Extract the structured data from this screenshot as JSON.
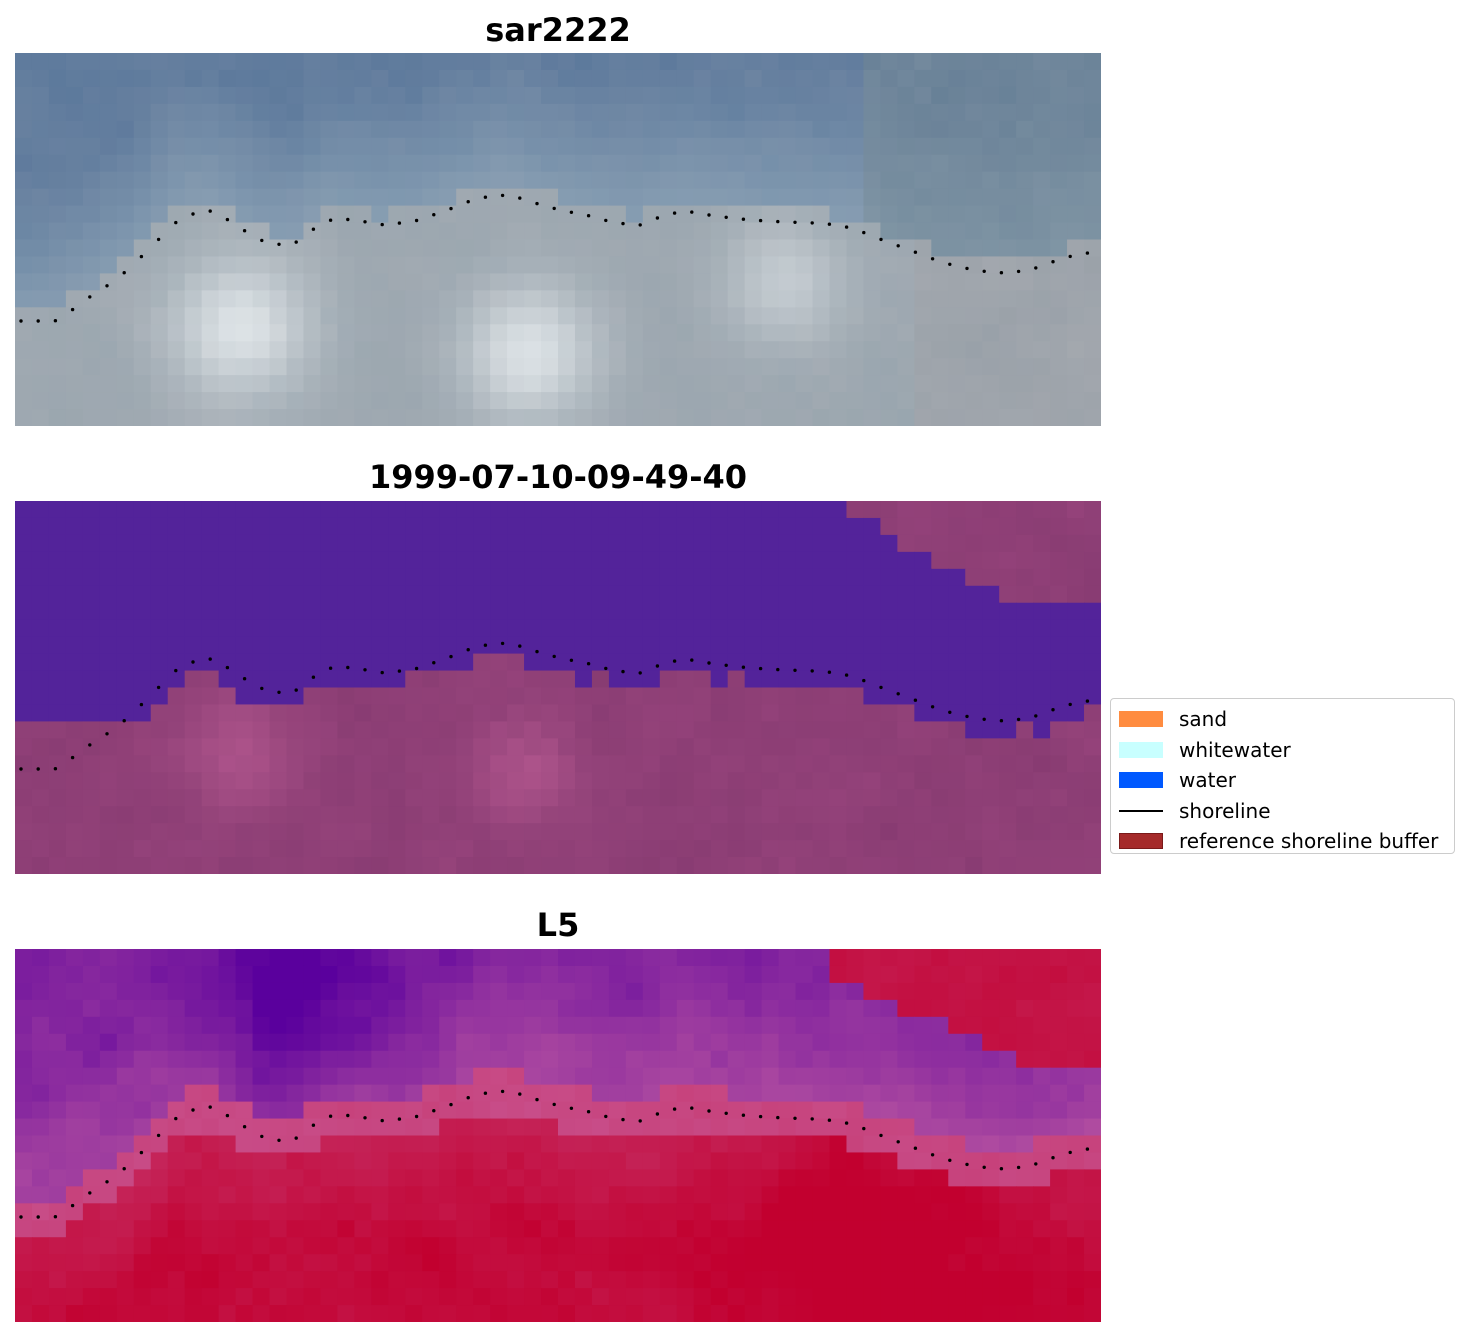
{
  "panels": [
    {
      "title": "sar2222",
      "image": "RGB satellite image of coastline"
    },
    {
      "title": "1999-07-10-09-49-40",
      "image": "classified image overlay (water / land)"
    },
    {
      "title": "L5",
      "image": "index image (purple to red colormap)"
    }
  ],
  "legend": {
    "items": [
      {
        "label": "sand",
        "color": "#ff8c40",
        "type": "patch"
      },
      {
        "label": "whitewater",
        "color": "#c8ffff",
        "type": "patch"
      },
      {
        "label": "water",
        "color": "#0059ff",
        "type": "patch"
      },
      {
        "label": "shoreline",
        "color": "#000000",
        "type": "line"
      },
      {
        "label": "reference shoreline buffer",
        "color": "#a52a2a",
        "type": "patch"
      }
    ]
  },
  "colors": {
    "water_class": "#53239a",
    "land_class": "#8e3f76",
    "index_low": "#5a009d",
    "index_high": "#c2002f"
  }
}
